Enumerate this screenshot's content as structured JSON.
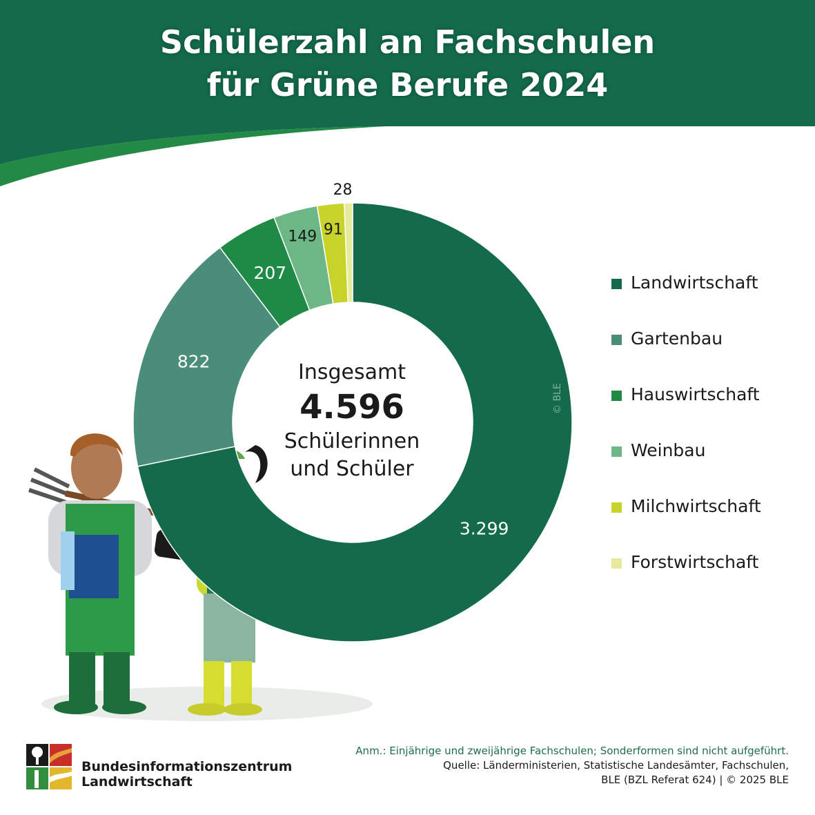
{
  "title_lines": [
    "Schülerzahl an Fachschulen",
    "für Grüne Berufe 2024"
  ],
  "colors": {
    "header": "#136b4b",
    "header_curve": "#238a45"
  },
  "chart_data": {
    "type": "pie",
    "title": "Schülerzahl an Fachschulen für Grüne Berufe 2024",
    "categories": [
      "Landwirtschaft",
      "Gartenbau",
      "Hauswirtschaft",
      "Weinbau",
      "Milchwirtschaft",
      "Forstwirtschaft"
    ],
    "values": [
      3299,
      822,
      207,
      149,
      91,
      28
    ],
    "value_labels": [
      "3.299",
      "822",
      "207",
      "149",
      "91",
      "28"
    ],
    "colors": [
      "#136b4b",
      "#4a8d78",
      "#1e8a46",
      "#6db685",
      "#c8d32a",
      "#e6ea9a"
    ],
    "total_label": "Insgesamt",
    "total_value": "4.596",
    "total_unit_lines": [
      "Schülerinnen",
      "und Schüler"
    ],
    "legend_position": "right"
  },
  "watermark": "© BLE",
  "logo": {
    "name_line1": "Bundesinformationszentrum",
    "name_line2": "Landwirtschaft"
  },
  "notes": {
    "anm": "Anm.: Einjährige und zweijährige Fachschulen; Sonderformen sind nicht aufgeführt.",
    "source_line1": "Quelle: Länderministerien, Statistische Landesämter, Fachschulen,",
    "source_line2": "BLE (BZL Referat 624) | © 2025 BLE"
  }
}
